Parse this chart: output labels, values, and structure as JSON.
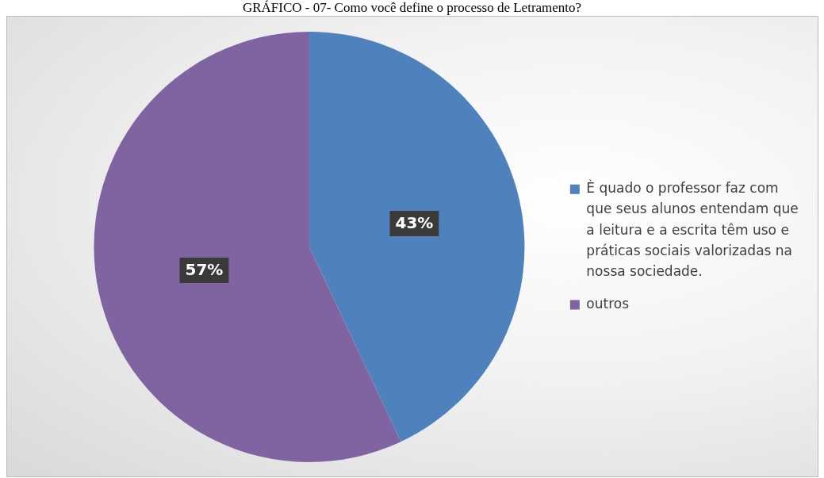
{
  "chart_data": {
    "type": "pie",
    "title": "GRÁFICO - 07- Como você define o processo de Letramento?",
    "categories": [
      "È quado o professor faz com que seus alunos entendam que a leitura e a escrita têm uso e práticas sociais valorizadas na nossa sociedade.",
      "outros"
    ],
    "values": [
      43,
      57
    ],
    "colors": [
      "#4f81bd",
      "#8064a2"
    ],
    "value_labels": [
      "43%",
      "57%"
    ],
    "legend": "right"
  }
}
